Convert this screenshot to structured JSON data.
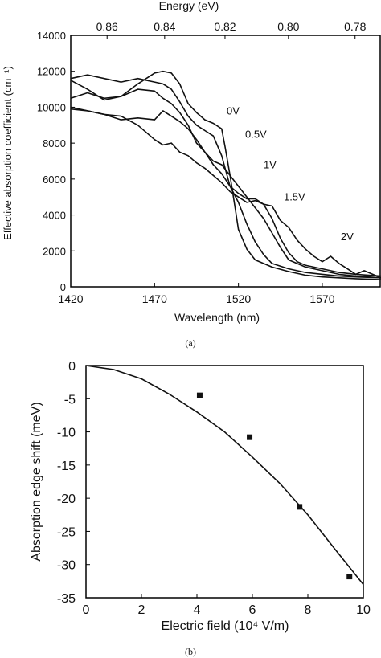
{
  "chart_data": [
    {
      "panel": "(a)",
      "type": "line",
      "xlabel": "Wavelength (nm)",
      "ylabel": "Effective absorption coefficient (cm⁻¹)",
      "top_axis_label": "Energy (eV)",
      "xlim": [
        1420,
        1605
      ],
      "ylim": [
        0,
        14000
      ],
      "xticks": [
        1420,
        1470,
        1520,
        1570
      ],
      "yticks": [
        0,
        2000,
        4000,
        6000,
        8000,
        10000,
        12000,
        14000
      ],
      "top_ticks": [
        "0.86",
        "0.84",
        "0.82",
        "0.80",
        "0.78"
      ],
      "top_tick_energies": [
        0.86,
        0.84,
        0.82,
        0.8,
        0.78
      ],
      "grid": false,
      "series": [
        {
          "name": "0V",
          "x": [
            1420,
            1430,
            1440,
            1450,
            1460,
            1470,
            1475,
            1480,
            1485,
            1490,
            1495,
            1500,
            1505,
            1510,
            1512,
            1515,
            1518,
            1520,
            1525,
            1530,
            1540,
            1550,
            1560,
            1570,
            1580,
            1590,
            1605
          ],
          "y": [
            11500,
            11000,
            10400,
            10600,
            11300,
            11900,
            12000,
            11900,
            11300,
            10200,
            9700,
            9300,
            9100,
            8800,
            7800,
            6200,
            4400,
            3200,
            2100,
            1500,
            1100,
            850,
            650,
            550,
            500,
            450,
            400
          ]
        },
        {
          "name": "0.5V",
          "x": [
            1420,
            1430,
            1440,
            1450,
            1460,
            1470,
            1475,
            1480,
            1485,
            1490,
            1495,
            1500,
            1505,
            1510,
            1515,
            1520,
            1525,
            1530,
            1535,
            1540,
            1550,
            1560,
            1570,
            1580,
            1590,
            1605
          ],
          "y": [
            11600,
            11800,
            11600,
            11400,
            11600,
            11400,
            11300,
            11000,
            10300,
            9500,
            9000,
            8700,
            8400,
            7300,
            5600,
            4700,
            3500,
            2500,
            1800,
            1300,
            1000,
            800,
            700,
            600,
            550,
            500
          ]
        },
        {
          "name": "1V",
          "x": [
            1420,
            1430,
            1440,
            1450,
            1460,
            1470,
            1475,
            1480,
            1485,
            1490,
            1495,
            1500,
            1505,
            1510,
            1515,
            1520,
            1525,
            1530,
            1535,
            1540,
            1545,
            1550,
            1560,
            1570,
            1580,
            1590,
            1605
          ],
          "y": [
            10500,
            10800,
            10500,
            10600,
            11000,
            10900,
            10500,
            10200,
            9700,
            9000,
            8000,
            7500,
            7000,
            6800,
            6200,
            5600,
            5000,
            4400,
            3800,
            3000,
            2200,
            1500,
            1100,
            900,
            700,
            600,
            500
          ]
        },
        {
          "name": "1.5V",
          "x": [
            1420,
            1430,
            1440,
            1450,
            1460,
            1470,
            1475,
            1480,
            1485,
            1490,
            1495,
            1500,
            1505,
            1510,
            1515,
            1520,
            1525,
            1530,
            1535,
            1540,
            1545,
            1550,
            1555,
            1560,
            1570,
            1580,
            1590,
            1605
          ],
          "y": [
            10000,
            9800,
            9600,
            9300,
            9400,
            9300,
            9800,
            9500,
            9200,
            8800,
            8200,
            7500,
            6800,
            6300,
            5600,
            5200,
            4900,
            4900,
            4600,
            3800,
            2700,
            1900,
            1400,
            1200,
            1000,
            800,
            700,
            600
          ]
        },
        {
          "name": "2V",
          "x": [
            1420,
            1430,
            1440,
            1450,
            1460,
            1470,
            1475,
            1480,
            1485,
            1490,
            1495,
            1500,
            1505,
            1510,
            1515,
            1520,
            1525,
            1530,
            1535,
            1540,
            1545,
            1550,
            1555,
            1560,
            1565,
            1570,
            1575,
            1580,
            1585,
            1590,
            1595,
            1605
          ],
          "y": [
            9900,
            9800,
            9600,
            9500,
            9000,
            8200,
            7900,
            8000,
            7500,
            7300,
            6900,
            6600,
            6200,
            5800,
            5300,
            5000,
            4700,
            4800,
            4600,
            4500,
            3700,
            3300,
            2600,
            2100,
            1700,
            1400,
            1700,
            1300,
            1000,
            700,
            900,
            500
          ]
        }
      ],
      "labels": [
        {
          "text": "0V",
          "x": 1513,
          "y": 9600
        },
        {
          "text": "0.5V",
          "x": 1524,
          "y": 8300
        },
        {
          "text": "1V",
          "x": 1535,
          "y": 6600
        },
        {
          "text": "1.5V",
          "x": 1547,
          "y": 4800
        },
        {
          "text": "2V",
          "x": 1581,
          "y": 2600
        }
      ]
    },
    {
      "panel": "(b)",
      "type": "scatter",
      "xlabel": "Electric field (10⁴ V/m)",
      "ylabel": "Absorption edge shift (meV)",
      "xlim": [
        0,
        10
      ],
      "ylim": [
        -35,
        0
      ],
      "xticks": [
        0,
        2,
        4,
        6,
        8,
        10
      ],
      "yticks": [
        0,
        -5,
        -10,
        -15,
        -20,
        -25,
        -30,
        -35
      ],
      "grid": false,
      "points": {
        "x": [
          4.1,
          5.9,
          7.7,
          9.5
        ],
        "y": [
          -4.5,
          -10.8,
          -21.3,
          -31.8
        ]
      },
      "fit_line": {
        "x": [
          0,
          1,
          2,
          3,
          4,
          5,
          6,
          7,
          8,
          9,
          10
        ],
        "y": [
          0,
          -0.6,
          -2.0,
          -4.3,
          -7.0,
          -10.0,
          -13.8,
          -17.8,
          -22.5,
          -27.8,
          -33.0
        ]
      }
    }
  ],
  "captions": {
    "a": "(a)",
    "b": "(b)"
  }
}
